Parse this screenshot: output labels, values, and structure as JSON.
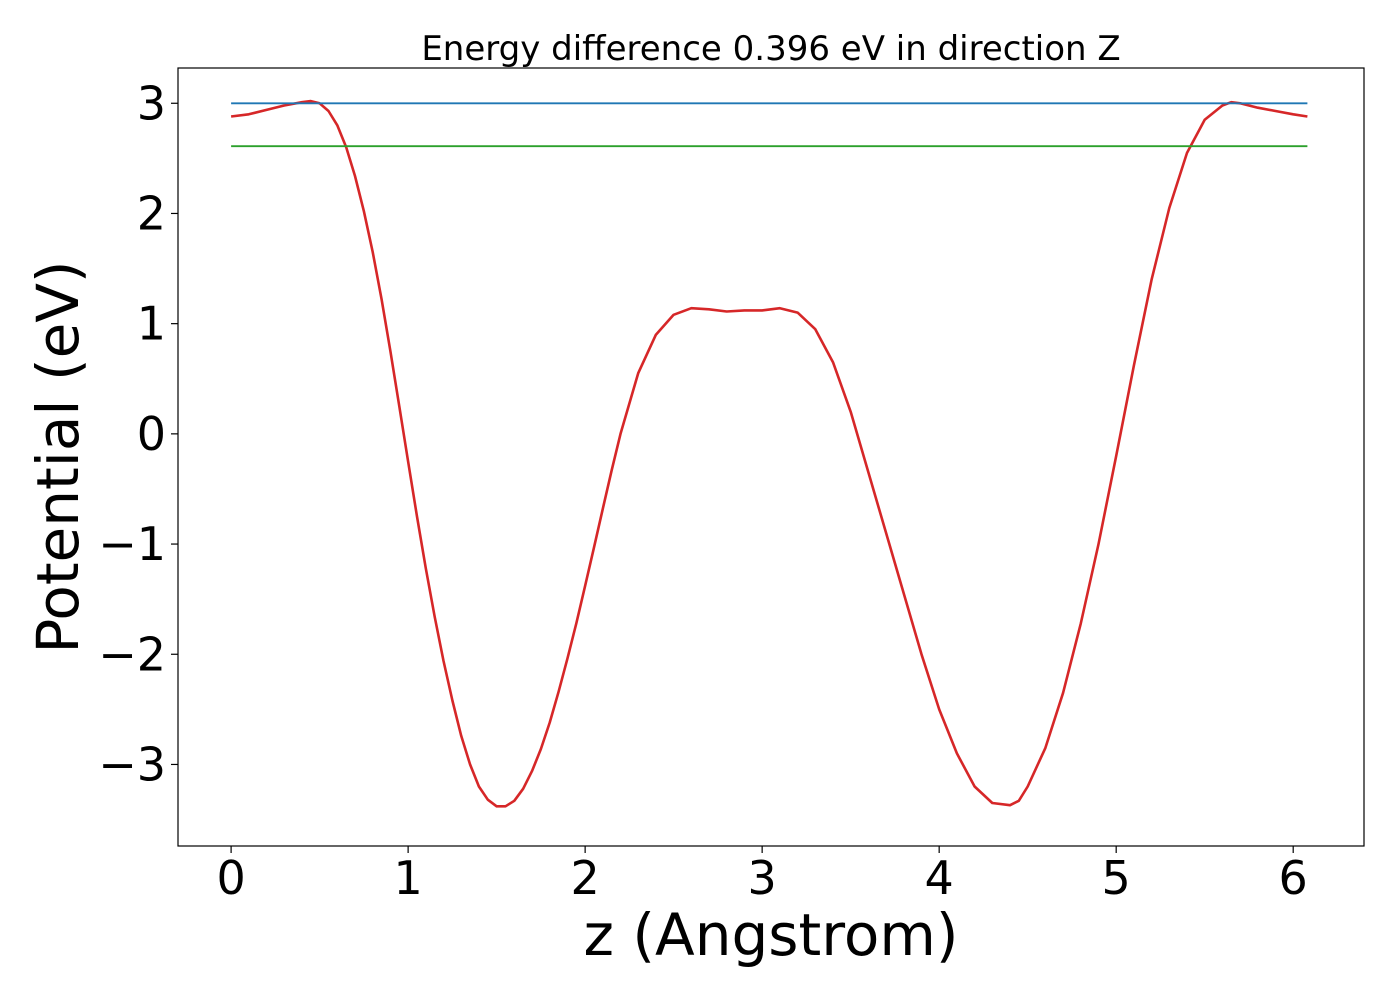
{
  "chart_data": {
    "type": "line",
    "title": "Energy difference 0.396 eV in direction Z",
    "xlabel": "z (Angstrom)",
    "ylabel": "Potential (eV)",
    "xlim": [
      -0.3,
      6.4
    ],
    "ylim": [
      -3.74,
      3.32
    ],
    "grid": false,
    "xticks": [
      0,
      1,
      2,
      3,
      4,
      5,
      6
    ],
    "yticks": [
      -3,
      -2,
      -1,
      0,
      1,
      2,
      3
    ],
    "xtick_labels": [
      "0",
      "1",
      "2",
      "3",
      "4",
      "5",
      "6"
    ],
    "ytick_labels": [
      "−3",
      "−2",
      "−1",
      "0",
      "1",
      "2",
      "3"
    ],
    "series": [
      {
        "color": "#d62728",
        "x": [
          0,
          0.1,
          0.2,
          0.3,
          0.4,
          0.45,
          0.5,
          0.55,
          0.6,
          0.65,
          0.7,
          0.75,
          0.8,
          0.85,
          0.9,
          0.95,
          1.0,
          1.05,
          1.1,
          1.15,
          1.2,
          1.25,
          1.3,
          1.35,
          1.4,
          1.45,
          1.5,
          1.55,
          1.6,
          1.65,
          1.7,
          1.75,
          1.8,
          1.85,
          1.9,
          1.95,
          2.0,
          2.05,
          2.1,
          2.15,
          2.2,
          2.3,
          2.4,
          2.5,
          2.6,
          2.7,
          2.8,
          2.9,
          3.0,
          3.05,
          3.1,
          3.2,
          3.3,
          3.4,
          3.5,
          3.6,
          3.7,
          3.8,
          3.9,
          4.0,
          4.1,
          4.2,
          4.3,
          4.4,
          4.45,
          4.5,
          4.6,
          4.7,
          4.8,
          4.9,
          5.0,
          5.1,
          5.2,
          5.3,
          5.4,
          5.5,
          5.6,
          5.65,
          5.7,
          5.8,
          5.9,
          6.0,
          6.08
        ],
        "y": [
          2.88,
          2.9,
          2.94,
          2.98,
          3.01,
          3.02,
          3.0,
          2.93,
          2.8,
          2.6,
          2.34,
          2.02,
          1.65,
          1.22,
          0.75,
          0.25,
          -0.25,
          -0.75,
          -1.22,
          -1.66,
          -2.06,
          -2.42,
          -2.74,
          -3.0,
          -3.2,
          -3.32,
          -3.38,
          -3.38,
          -3.33,
          -3.22,
          -3.06,
          -2.86,
          -2.62,
          -2.34,
          -2.04,
          -1.72,
          -1.38,
          -1.03,
          -0.68,
          -0.33,
          0.0,
          0.55,
          0.9,
          1.08,
          1.14,
          1.13,
          1.11,
          1.12,
          1.12,
          1.13,
          1.14,
          1.1,
          0.95,
          0.65,
          0.2,
          -0.35,
          -0.9,
          -1.45,
          -2.0,
          -2.5,
          -2.9,
          -3.2,
          -3.35,
          -3.37,
          -3.33,
          -3.2,
          -2.85,
          -2.35,
          -1.72,
          -1.0,
          -0.2,
          0.62,
          1.4,
          2.05,
          2.55,
          2.85,
          2.98,
          3.01,
          3.0,
          2.96,
          2.93,
          2.9,
          2.88
        ]
      },
      {
        "color": "#1f77b4",
        "x": [
          0,
          6.08
        ],
        "y": [
          3.0,
          3.0
        ]
      },
      {
        "color": "#2ca02c",
        "x": [
          0,
          6.08
        ],
        "y": [
          2.61,
          2.61
        ]
      }
    ]
  }
}
